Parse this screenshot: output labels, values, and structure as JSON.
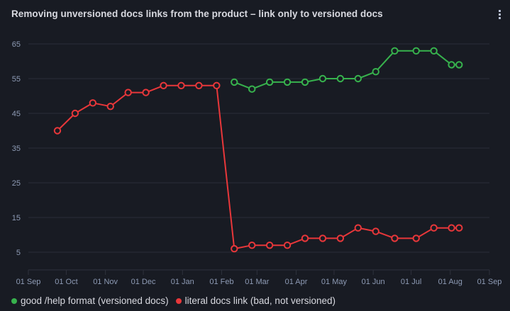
{
  "panel": {
    "title": "Removing unversioned docs links from the product – link only to versioned docs",
    "menu_icon": "kebab-vertical-icon"
  },
  "colors": {
    "background": "#181b23",
    "grid": "#2a2d38",
    "axis_text": "#8e9bb5",
    "good": "#37b24d",
    "bad": "#e8373a"
  },
  "legend": {
    "items": [
      {
        "label": "good /help format (versioned docs)",
        "color": "#37b24d"
      },
      {
        "label": "literal docs link (bad, not versioned)",
        "color": "#e8373a"
      }
    ]
  },
  "chart_data": {
    "type": "line",
    "title": "Removing unversioned docs links from the product – link only to versioned docs",
    "xlabel": "",
    "ylabel": "",
    "ylim": [
      0,
      67
    ],
    "yticks": [
      5,
      15,
      25,
      35,
      45,
      55,
      65
    ],
    "xticks": [
      "01 Sep",
      "01 Oct",
      "01 Nov",
      "01 Dec",
      "01 Jan",
      "01 Feb",
      "01 Mar",
      "01 Apr",
      "01 May",
      "01 Jun",
      "01 Jul",
      "01 Aug",
      "01 Sep"
    ],
    "grid": true,
    "legend_position": "bottom",
    "x_days_from_start": [
      23,
      37,
      51,
      65,
      79,
      93,
      107,
      121,
      135,
      149,
      163,
      177,
      191,
      205,
      219,
      233,
      247,
      261,
      275,
      290,
      307,
      321,
      335,
      341
    ],
    "series": [
      {
        "name": "good /help format (versioned docs)",
        "color": "#37b24d",
        "values": [
          null,
          null,
          null,
          null,
          null,
          null,
          null,
          null,
          null,
          null,
          54,
          52,
          54,
          54,
          54,
          55,
          55,
          55,
          57,
          63,
          63,
          63,
          59,
          59
        ]
      },
      {
        "name": "literal docs link (bad, not versioned)",
        "color": "#e8373a",
        "values": [
          40,
          45,
          48,
          47,
          51,
          51,
          53,
          53,
          53,
          53,
          6,
          7,
          7,
          7,
          9,
          9,
          9,
          12,
          11,
          9,
          9,
          12,
          12,
          12
        ]
      }
    ]
  }
}
